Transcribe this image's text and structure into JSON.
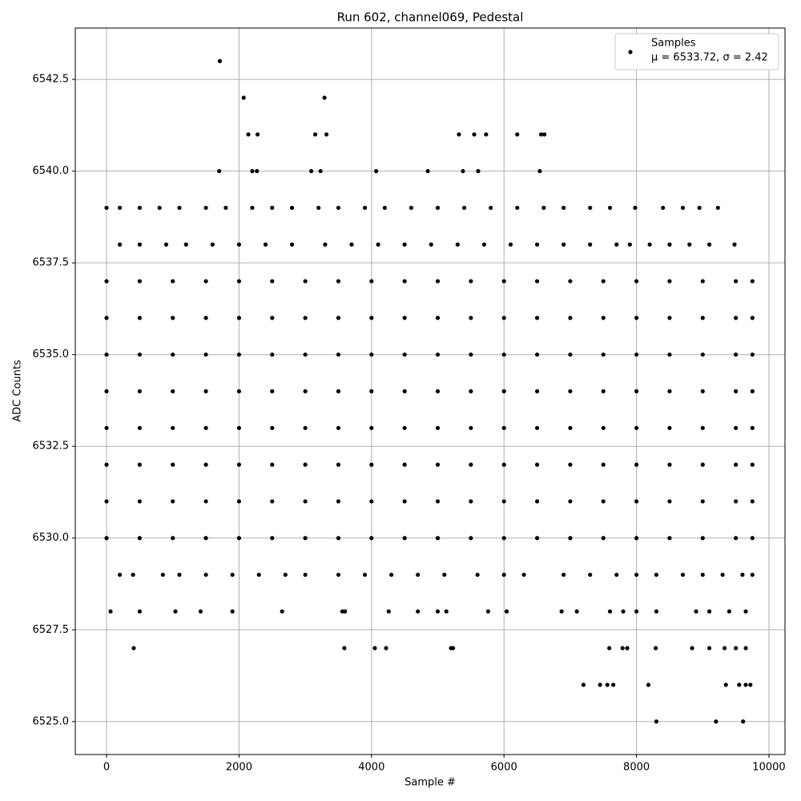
{
  "chart_data": {
    "type": "scatter",
    "title": "Run 602, channel069, Pedestal",
    "x_label": "Sample #",
    "y_label": "ADC Counts",
    "legend_note": "μ = 6533.72, σ = 2.42",
    "legend_position": "upper right",
    "grid": true,
    "xlim": [
      -472,
      10242
    ],
    "ylim": [
      6524.1,
      6543.9
    ],
    "xticks": [
      0,
      2000,
      4000,
      6000,
      8000,
      10000
    ],
    "yticks": [
      {
        "value": 6525,
        "label": "6525.0"
      },
      {
        "value": 6527.5,
        "label": "6527.5"
      },
      {
        "value": 6530,
        "label": "6530.0"
      },
      {
        "value": 6532.5,
        "label": "6532.5"
      },
      {
        "value": 6535,
        "label": "6535.0"
      },
      {
        "value": 6537.5,
        "label": "6537.5"
      },
      {
        "value": 6540,
        "label": "6540.0"
      },
      {
        "value": 6542.5,
        "label": "6542.5"
      }
    ],
    "x": [
      1710,
      2070,
      3290,
      2140,
      2280,
      3150,
      3320,
      5320,
      5550,
      5730,
      6200,
      6560,
      6610,
      1700,
      2200,
      2270,
      3090,
      3230,
      4070,
      4850,
      5380,
      5610,
      6540,
      0,
      200,
      500,
      800,
      1100,
      1500,
      1800,
      2200,
      2500,
      2800,
      3200,
      3500,
      3900,
      4200,
      4600,
      5000,
      5400,
      5800,
      6200,
      6600,
      6900,
      7300,
      7600,
      7980,
      8400,
      8700,
      8950,
      9230,
      200,
      500,
      900,
      1200,
      1600,
      2000,
      2400,
      2800,
      3300,
      3700,
      4100,
      4500,
      4900,
      5300,
      5700,
      6100,
      6500,
      6900,
      7300,
      7700,
      7900,
      8200,
      8500,
      8800,
      9100,
      9480,
      0,
      500,
      1000,
      1500,
      2000,
      2500,
      3000,
      3500,
      4000,
      4500,
      5000,
      5500,
      6000,
      6500,
      7000,
      7500,
      8000,
      8500,
      9000,
      9500,
      9750,
      0,
      500,
      1000,
      1500,
      2000,
      2500,
      3000,
      3500,
      4000,
      4500,
      5000,
      5500,
      6000,
      6500,
      7000,
      7500,
      8000,
      8500,
      9000,
      9500,
      9750,
      0,
      500,
      1000,
      1500,
      2000,
      2500,
      3000,
      3500,
      4000,
      4500,
      5000,
      5500,
      6000,
      6500,
      7000,
      7500,
      8000,
      8500,
      9000,
      9500,
      9750,
      0,
      500,
      1000,
      1500,
      2000,
      2500,
      3000,
      3500,
      4000,
      4500,
      5000,
      5500,
      6000,
      6500,
      7000,
      7500,
      8000,
      8500,
      9000,
      9500,
      9750,
      0,
      500,
      1000,
      1500,
      2000,
      2500,
      3000,
      3500,
      4000,
      4500,
      5000,
      5500,
      6000,
      6500,
      7000,
      7500,
      8000,
      8500,
      9000,
      9500,
      9750,
      0,
      500,
      1000,
      1500,
      2000,
      2500,
      3000,
      3500,
      4000,
      4500,
      5000,
      5500,
      6000,
      6500,
      7000,
      7500,
      8000,
      8500,
      9000,
      9500,
      9750,
      0,
      500,
      1000,
      1500,
      2000,
      2500,
      3000,
      3500,
      4000,
      4500,
      5000,
      5500,
      6000,
      6500,
      7000,
      7500,
      8000,
      8500,
      9000,
      9500,
      9750,
      0,
      500,
      1000,
      1500,
      2000,
      2500,
      3000,
      3500,
      4000,
      4500,
      5000,
      5500,
      6000,
      6500,
      7000,
      7500,
      8000,
      8500,
      9000,
      9500,
      9750,
      200,
      400,
      850,
      1100,
      1500,
      1900,
      2300,
      2700,
      3000,
      3500,
      3900,
      4300,
      4700,
      5100,
      5600,
      6000,
      6300,
      6900,
      7300,
      7700,
      8000,
      8300,
      8700,
      9000,
      9300,
      9600,
      9750,
      60,
      500,
      1040,
      1420,
      1900,
      2650,
      3560,
      3600,
      4260,
      4700,
      5000,
      5130,
      5760,
      6040,
      6870,
      7100,
      7600,
      7800,
      8000,
      8300,
      8900,
      9100,
      9400,
      9650,
      410,
      3590,
      4050,
      4220,
      5200,
      5230,
      7590,
      7790,
      7860,
      8290,
      8840,
      9100,
      9330,
      9500,
      9650,
      7200,
      7450,
      7560,
      7650,
      8180,
      9350,
      9550,
      9650,
      9720,
      8300,
      9200,
      9610
    ],
    "series": [
      {
        "name": "Samples",
        "color": "#000000",
        "values": [
          6543,
          6542,
          6542,
          6541,
          6541,
          6541,
          6541,
          6541,
          6541,
          6541,
          6541,
          6541,
          6541,
          6540,
          6540,
          6540,
          6540,
          6540,
          6540,
          6540,
          6540,
          6540,
          6540,
          6539,
          6539,
          6539,
          6539,
          6539,
          6539,
          6539,
          6539,
          6539,
          6539,
          6539,
          6539,
          6539,
          6539,
          6539,
          6539,
          6539,
          6539,
          6539,
          6539,
          6539,
          6539,
          6539,
          6539,
          6539,
          6539,
          6539,
          6539,
          6538,
          6538,
          6538,
          6538,
          6538,
          6538,
          6538,
          6538,
          6538,
          6538,
          6538,
          6538,
          6538,
          6538,
          6538,
          6538,
          6538,
          6538,
          6538,
          6538,
          6538,
          6538,
          6538,
          6538,
          6538,
          6538,
          6537,
          6537,
          6537,
          6537,
          6537,
          6537,
          6537,
          6537,
          6537,
          6537,
          6537,
          6537,
          6537,
          6537,
          6537,
          6537,
          6537,
          6537,
          6537,
          6537,
          6537,
          6536,
          6536,
          6536,
          6536,
          6536,
          6536,
          6536,
          6536,
          6536,
          6536,
          6536,
          6536,
          6536,
          6536,
          6536,
          6536,
          6536,
          6536,
          6536,
          6536,
          6536,
          6535,
          6535,
          6535,
          6535,
          6535,
          6535,
          6535,
          6535,
          6535,
          6535,
          6535,
          6535,
          6535,
          6535,
          6535,
          6535,
          6535,
          6535,
          6535,
          6535,
          6535,
          6534,
          6534,
          6534,
          6534,
          6534,
          6534,
          6534,
          6534,
          6534,
          6534,
          6534,
          6534,
          6534,
          6534,
          6534,
          6534,
          6534,
          6534,
          6534,
          6534,
          6534,
          6533,
          6533,
          6533,
          6533,
          6533,
          6533,
          6533,
          6533,
          6533,
          6533,
          6533,
          6533,
          6533,
          6533,
          6533,
          6533,
          6533,
          6533,
          6533,
          6533,
          6533,
          6532,
          6532,
          6532,
          6532,
          6532,
          6532,
          6532,
          6532,
          6532,
          6532,
          6532,
          6532,
          6532,
          6532,
          6532,
          6532,
          6532,
          6532,
          6532,
          6532,
          6532,
          6531,
          6531,
          6531,
          6531,
          6531,
          6531,
          6531,
          6531,
          6531,
          6531,
          6531,
          6531,
          6531,
          6531,
          6531,
          6531,
          6531,
          6531,
          6531,
          6531,
          6531,
          6530,
          6530,
          6530,
          6530,
          6530,
          6530,
          6530,
          6530,
          6530,
          6530,
          6530,
          6530,
          6530,
          6530,
          6530,
          6530,
          6530,
          6530,
          6530,
          6530,
          6530,
          6529,
          6529,
          6529,
          6529,
          6529,
          6529,
          6529,
          6529,
          6529,
          6529,
          6529,
          6529,
          6529,
          6529,
          6529,
          6529,
          6529,
          6529,
          6529,
          6529,
          6529,
          6529,
          6529,
          6529,
          6529,
          6529,
          6529,
          6528,
          6528,
          6528,
          6528,
          6528,
          6528,
          6528,
          6528,
          6528,
          6528,
          6528,
          6528,
          6528,
          6528,
          6528,
          6528,
          6528,
          6528,
          6528,
          6528,
          6528,
          6528,
          6528,
          6528,
          6527,
          6527,
          6527,
          6527,
          6527,
          6527,
          6527,
          6527,
          6527,
          6527,
          6527,
          6527,
          6527,
          6527,
          6527,
          6526,
          6526,
          6526,
          6526,
          6526,
          6526,
          6526,
          6526,
          6526,
          6525,
          6525,
          6525
        ]
      }
    ]
  }
}
